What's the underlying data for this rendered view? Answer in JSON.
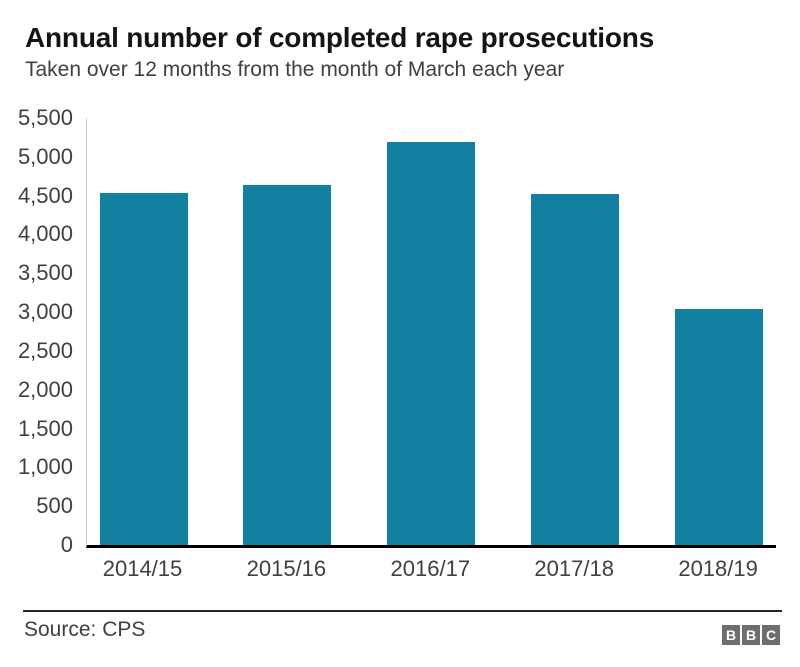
{
  "header": {
    "title": "Annual number of completed rape prosecutions",
    "subtitle": "Taken over 12 months from the month of March each year"
  },
  "chart_data": {
    "type": "bar",
    "title": "Annual number of completed rape prosecutions",
    "subtitle": "Taken over 12 months from the month of March each year",
    "categories": [
      "2014/15",
      "2015/16",
      "2016/17",
      "2017/18",
      "2018/19"
    ],
    "values": [
      4536,
      4643,
      5190,
      4517,
      3034
    ],
    "xlabel": "",
    "ylabel": "",
    "ylim": [
      0,
      5500
    ],
    "ytick_step": 500,
    "ytick_labels": [
      "0",
      "500",
      "1,000",
      "1,500",
      "2,000",
      "2,500",
      "3,000",
      "3,500",
      "4,000",
      "4,500",
      "5,000",
      "5,500"
    ],
    "grid": false,
    "legend": false,
    "bar_color": "#1380A1"
  },
  "footer": {
    "source": "Source: CPS",
    "logo_letters": [
      "B",
      "B",
      "C"
    ]
  },
  "colors": {
    "bar": "#1380A1",
    "x_axis_line": "#000000",
    "y_axis_line": "#cccccc",
    "title_text": "#141414",
    "body_text": "#404040",
    "divider": "#262626",
    "logo_gray": "#6e6e6e",
    "logo_letter": "#ffffff",
    "background": "#ffffff"
  }
}
